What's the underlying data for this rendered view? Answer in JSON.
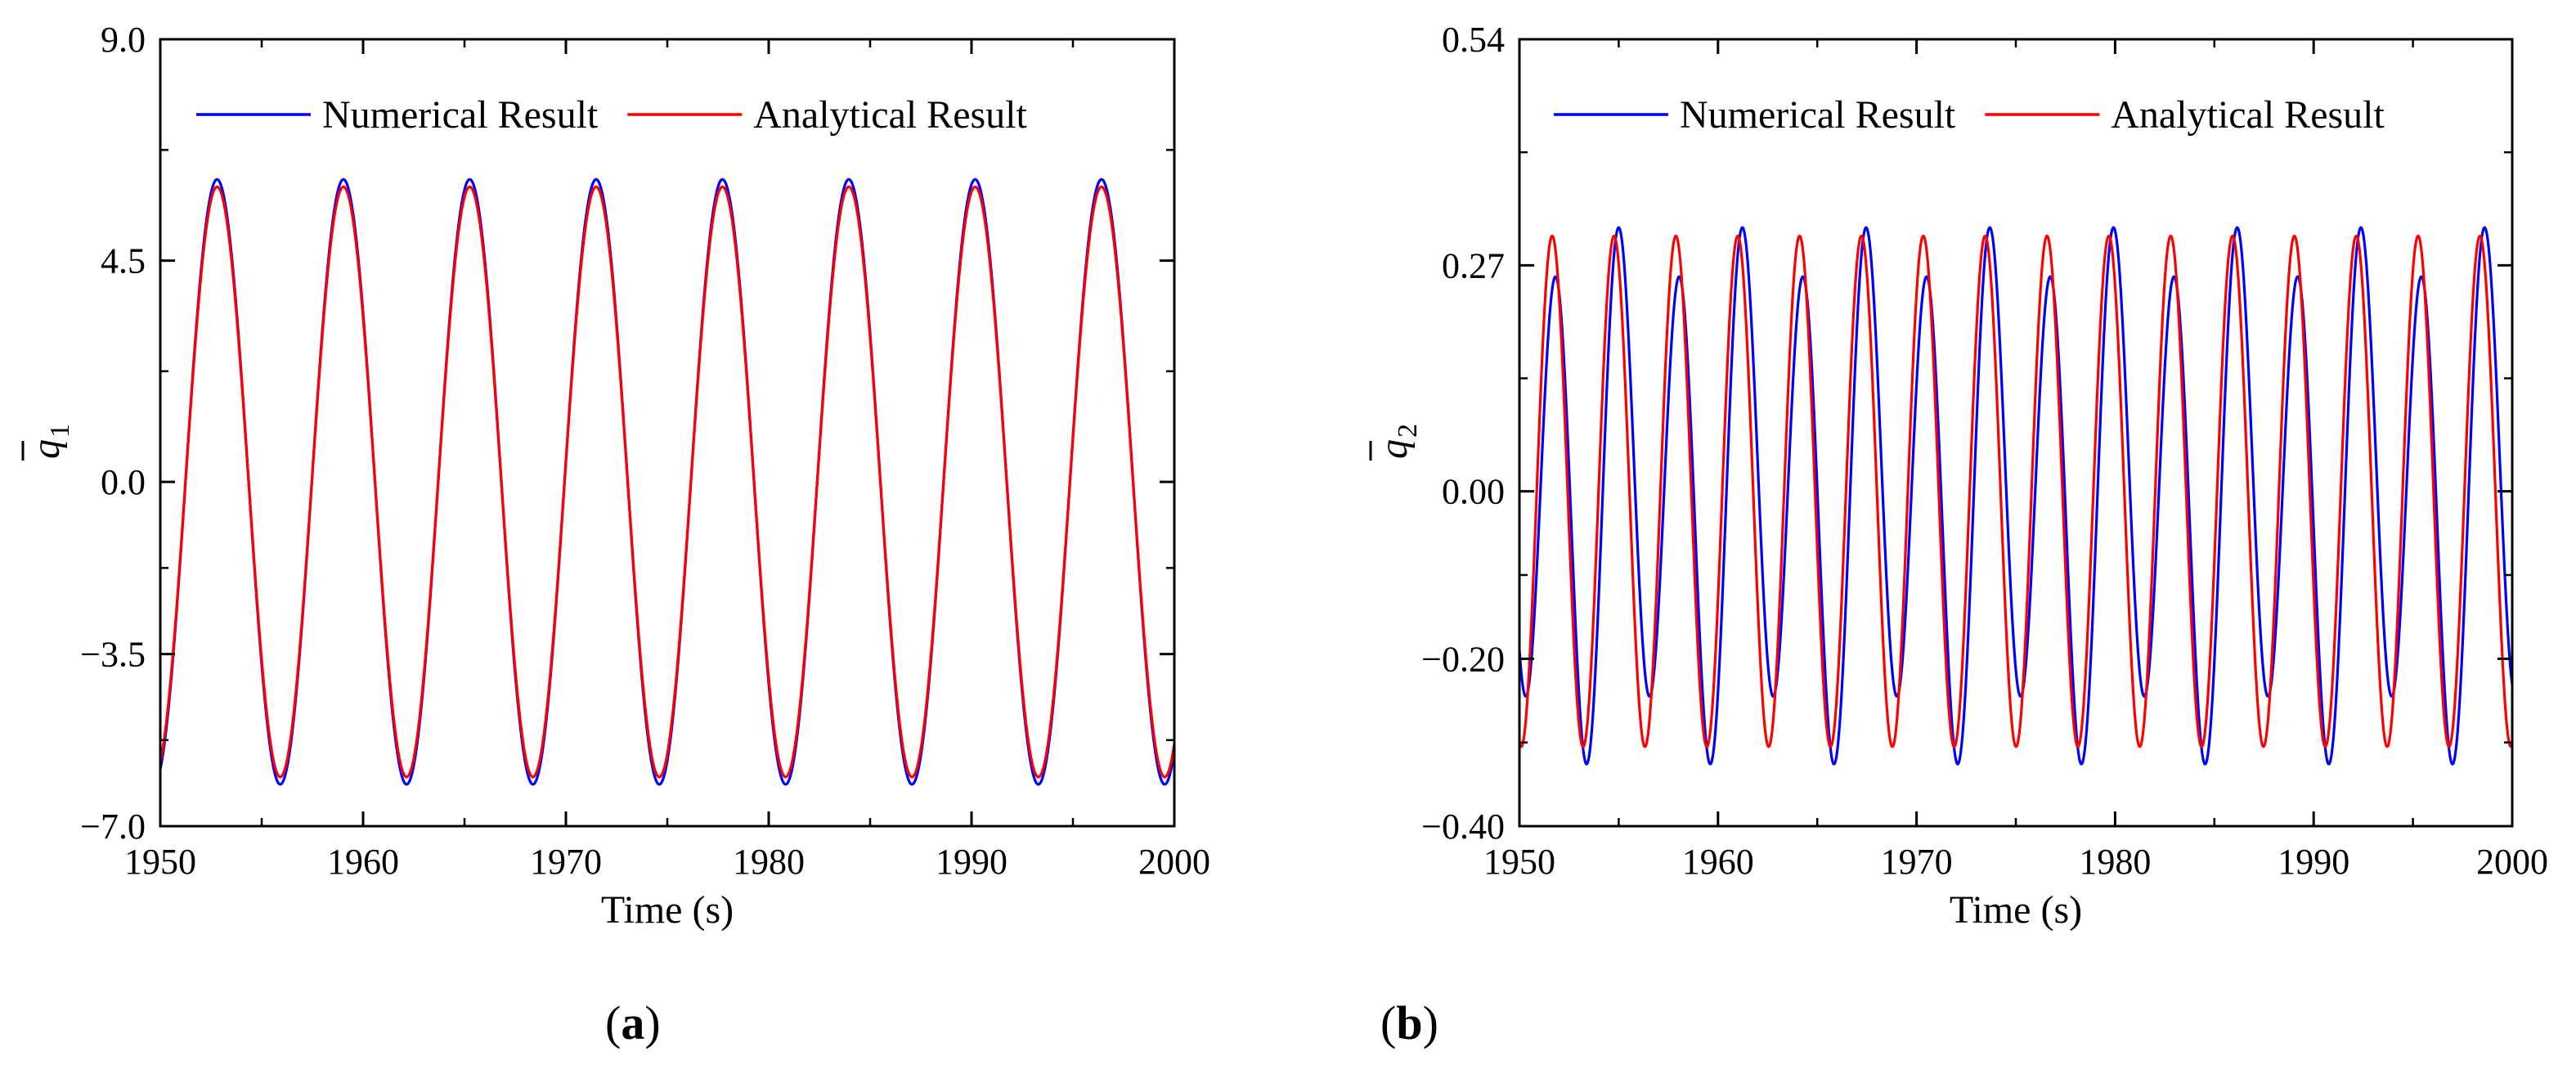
{
  "colors": {
    "numerical": "#0000ff",
    "analytical": "#ff0000",
    "axis": "#000000"
  },
  "chart_data": [
    {
      "type": "line",
      "panel": {
        "open": "(",
        "letter": "a",
        "close": ")"
      },
      "xlabel": "Time (s)",
      "ylabel": {
        "symbol": "q",
        "subscript": "1"
      },
      "xlim": [
        1950,
        2000
      ],
      "ylim": [
        -7.0,
        9.0
      ],
      "xticks": [
        1950,
        1960,
        1970,
        1980,
        1990,
        2000
      ],
      "xtick_labels": [
        "1950",
        "1960",
        "1970",
        "1980",
        "1990",
        "2000"
      ],
      "yticks": [
        -7.0,
        -3.5,
        0.0,
        4.5,
        9.0
      ],
      "ytick_labels": [
        "−7.0",
        "−3.5",
        "0.0",
        "4.5",
        "9.0"
      ],
      "legend": {
        "position": "top",
        "entries": [
          "Numerical Result",
          "Analytical Result"
        ]
      },
      "series": [
        {
          "name": "Numerical Result",
          "color_key": "numerical",
          "model": {
            "components": [
              {
                "amplitude": 6.15,
                "period": 6.23,
                "peak_at": 1952.8
              }
            ],
            "offset": 0.0
          }
        },
        {
          "name": "Analytical Result",
          "color_key": "analytical",
          "model": {
            "components": [
              {
                "amplitude": 6.0,
                "period": 6.23,
                "peak_at": 1952.8
              }
            ],
            "offset": 0.0
          }
        }
      ]
    },
    {
      "type": "line",
      "panel": {
        "open": "(",
        "letter": "b",
        "close": ")"
      },
      "xlabel": "Time (s)",
      "ylabel": {
        "symbol": "q",
        "subscript": "2"
      },
      "xlim": [
        1950,
        2000
      ],
      "ylim": [
        -0.4,
        0.54
      ],
      "xticks": [
        1950,
        1960,
        1970,
        1980,
        1990,
        2000
      ],
      "xtick_labels": [
        "1950",
        "1960",
        "1970",
        "1980",
        "1990",
        "2000"
      ],
      "yticks": [
        -0.4,
        -0.2,
        0.0,
        0.27,
        0.54
      ],
      "ytick_labels": [
        "−0.40",
        "−0.20",
        "0.00",
        "0.27",
        "0.54"
      ],
      "legend": {
        "position": "top",
        "entries": [
          "Numerical Result",
          "Analytical Result"
        ]
      },
      "series": [
        {
          "name": "Numerical Result",
          "color_key": "numerical",
          "model": {
            "components": [
              {
                "amplitude": 0.285,
                "period": 3.115,
                "peak_at": 1951.85
              },
              {
                "amplitude": 0.05,
                "period": 6.23,
                "peak_at": 1955.9
              }
            ],
            "offset": 0.0
          }
        },
        {
          "name": "Analytical Result",
          "color_key": "analytical",
          "model": {
            "components": [
              {
                "amplitude": 0.305,
                "period": 3.115,
                "peak_at": 1951.65
              }
            ],
            "offset": 0.0
          }
        }
      ]
    }
  ]
}
